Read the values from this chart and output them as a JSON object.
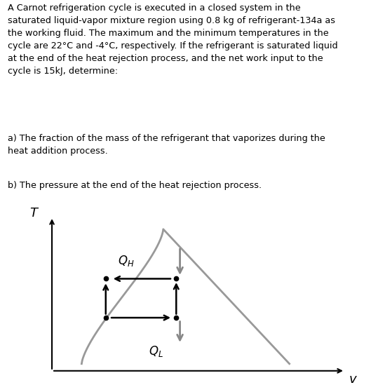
{
  "title_text": "A Carnot refrigeration cycle is executed in a closed system in the\nsaturated liquid-vapor mixture region using 0.8 kg of refrigerant-134a as\nthe working fluid. The maximum and the minimum temperatures in the\ncycle are 22°C and -4°C, respectively. If the refrigerant is saturated liquid\nat the end of the heat rejection process, and the net work input to the\ncycle is 15kJ, determine:",
  "part_a": "a) The fraction of the mass of the refrigerant that vaporizes during the\nheat addition process.",
  "part_b": "b) The pressure at the end of the heat rejection process.",
  "text_color": "#000000",
  "curve_color": "#999999",
  "rect_color": "#000000",
  "axis_color": "#000000",
  "font_size_text": 9.2,
  "QH_label": "$Q_H$",
  "QL_label": "$Q_L$",
  "T_label": "T",
  "v_label": "v"
}
